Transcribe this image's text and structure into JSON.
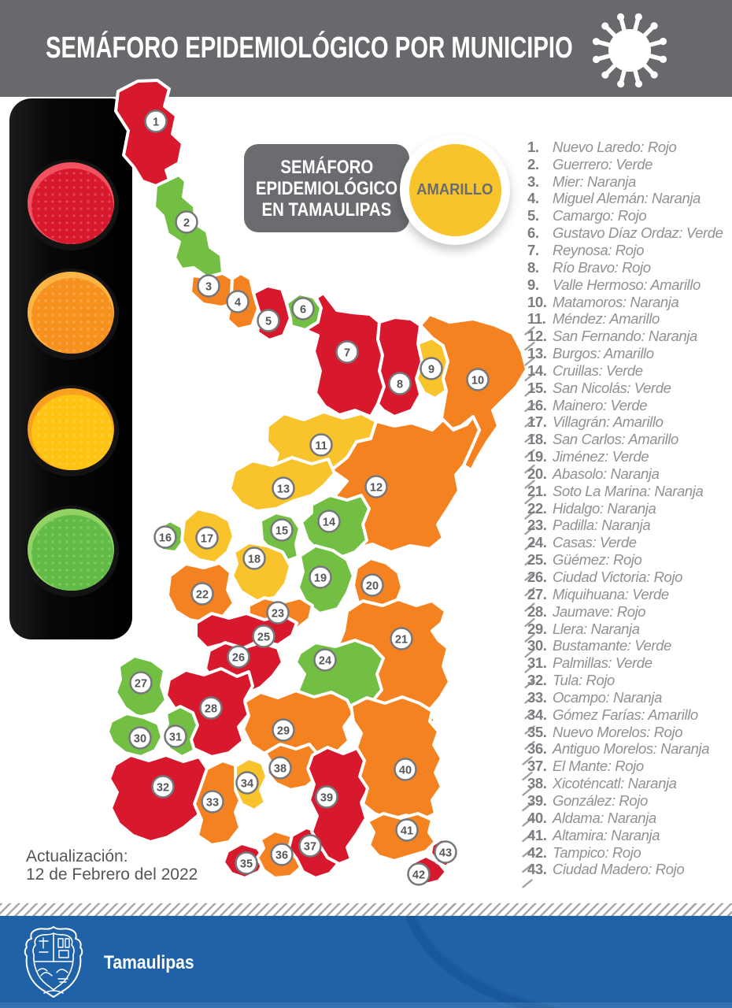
{
  "header": {
    "title": "SEMÁFORO EPIDEMIOLÓGICO POR MUNICIPIO"
  },
  "legend_badge": {
    "line1": "SEMÁFORO",
    "line2": "EPIDEMIOLÓGICO",
    "line3": "EN TAMAULIPAS",
    "status": "AMARILLO"
  },
  "status_colors": {
    "Rojo": "#d8182c",
    "Naranja": "#f58220",
    "Amarillo": "#f9c32b",
    "Verde": "#72bf44"
  },
  "municipalities": [
    {
      "num": 1,
      "name": "Nuevo Laredo",
      "status": "Rojo"
    },
    {
      "num": 2,
      "name": "Guerrero",
      "status": "Verde"
    },
    {
      "num": 3,
      "name": "Mier",
      "status": "Naranja"
    },
    {
      "num": 4,
      "name": "Miguel Alemán",
      "status": "Naranja"
    },
    {
      "num": 5,
      "name": "Camargo",
      "status": "Rojo"
    },
    {
      "num": 6,
      "name": "Gustavo Díaz Ordaz",
      "status": "Verde"
    },
    {
      "num": 7,
      "name": "Reynosa",
      "status": "Rojo"
    },
    {
      "num": 8,
      "name": "Río Bravo",
      "status": "Rojo"
    },
    {
      "num": 9,
      "name": "Valle Hermoso",
      "status": "Amarillo"
    },
    {
      "num": 10,
      "name": "Matamoros",
      "status": "Naranja"
    },
    {
      "num": 11,
      "name": "Méndez",
      "status": "Amarillo"
    },
    {
      "num": 12,
      "name": "San Fernando",
      "status": "Naranja"
    },
    {
      "num": 13,
      "name": "Burgos",
      "status": "Amarillo"
    },
    {
      "num": 14,
      "name": "Cruillas",
      "status": "Verde"
    },
    {
      "num": 15,
      "name": "San Nicolás",
      "status": "Verde"
    },
    {
      "num": 16,
      "name": "Mainero",
      "status": "Verde"
    },
    {
      "num": 17,
      "name": "Villagrán",
      "status": "Amarillo"
    },
    {
      "num": 18,
      "name": "San Carlos",
      "status": "Amarillo"
    },
    {
      "num": 19,
      "name": "Jiménez",
      "status": "Verde"
    },
    {
      "num": 20,
      "name": "Abasolo",
      "status": "Naranja"
    },
    {
      "num": 21,
      "name": "Soto La Marina",
      "status": "Naranja"
    },
    {
      "num": 22,
      "name": "Hidalgo",
      "status": "Naranja"
    },
    {
      "num": 23,
      "name": "Padilla",
      "status": "Naranja"
    },
    {
      "num": 24,
      "name": "Casas",
      "status": "Verde"
    },
    {
      "num": 25,
      "name": "Güémez",
      "status": "Rojo"
    },
    {
      "num": 26,
      "name": "Ciudad Victoria",
      "status": "Rojo"
    },
    {
      "num": 27,
      "name": "Miquihuana",
      "status": "Verde"
    },
    {
      "num": 28,
      "name": "Jaumave",
      "status": "Rojo"
    },
    {
      "num": 29,
      "name": "Llera",
      "status": "Naranja"
    },
    {
      "num": 30,
      "name": "Bustamante",
      "status": "Verde"
    },
    {
      "num": 31,
      "name": "Palmillas",
      "status": "Verde"
    },
    {
      "num": 32,
      "name": "Tula",
      "status": "Rojo"
    },
    {
      "num": 33,
      "name": "Ocampo",
      "status": "Naranja"
    },
    {
      "num": 34,
      "name": "Gómez Farías",
      "status": "Amarillo"
    },
    {
      "num": 35,
      "name": "Nuevo Morelos",
      "status": "Rojo"
    },
    {
      "num": 36,
      "name": "Antiguo Morelos",
      "status": "Naranja"
    },
    {
      "num": 37,
      "name": "El Mante",
      "status": "Rojo"
    },
    {
      "num": 38,
      "name": "Xicoténcatl",
      "status": "Naranja"
    },
    {
      "num": 39,
      "name": "González",
      "status": "Rojo"
    },
    {
      "num": 40,
      "name": "Aldama",
      "status": "Naranja"
    },
    {
      "num": 41,
      "name": "Altamira",
      "status": "Naranja"
    },
    {
      "num": 42,
      "name": "Tampico",
      "status": "Rojo"
    },
    {
      "num": 43,
      "name": "Ciudad Madero",
      "status": "Rojo"
    }
  ],
  "update": {
    "line1": "Actualización:",
    "line2": "12 de Febrero del 2022"
  },
  "footer": {
    "brand": "Tamaulipas"
  }
}
